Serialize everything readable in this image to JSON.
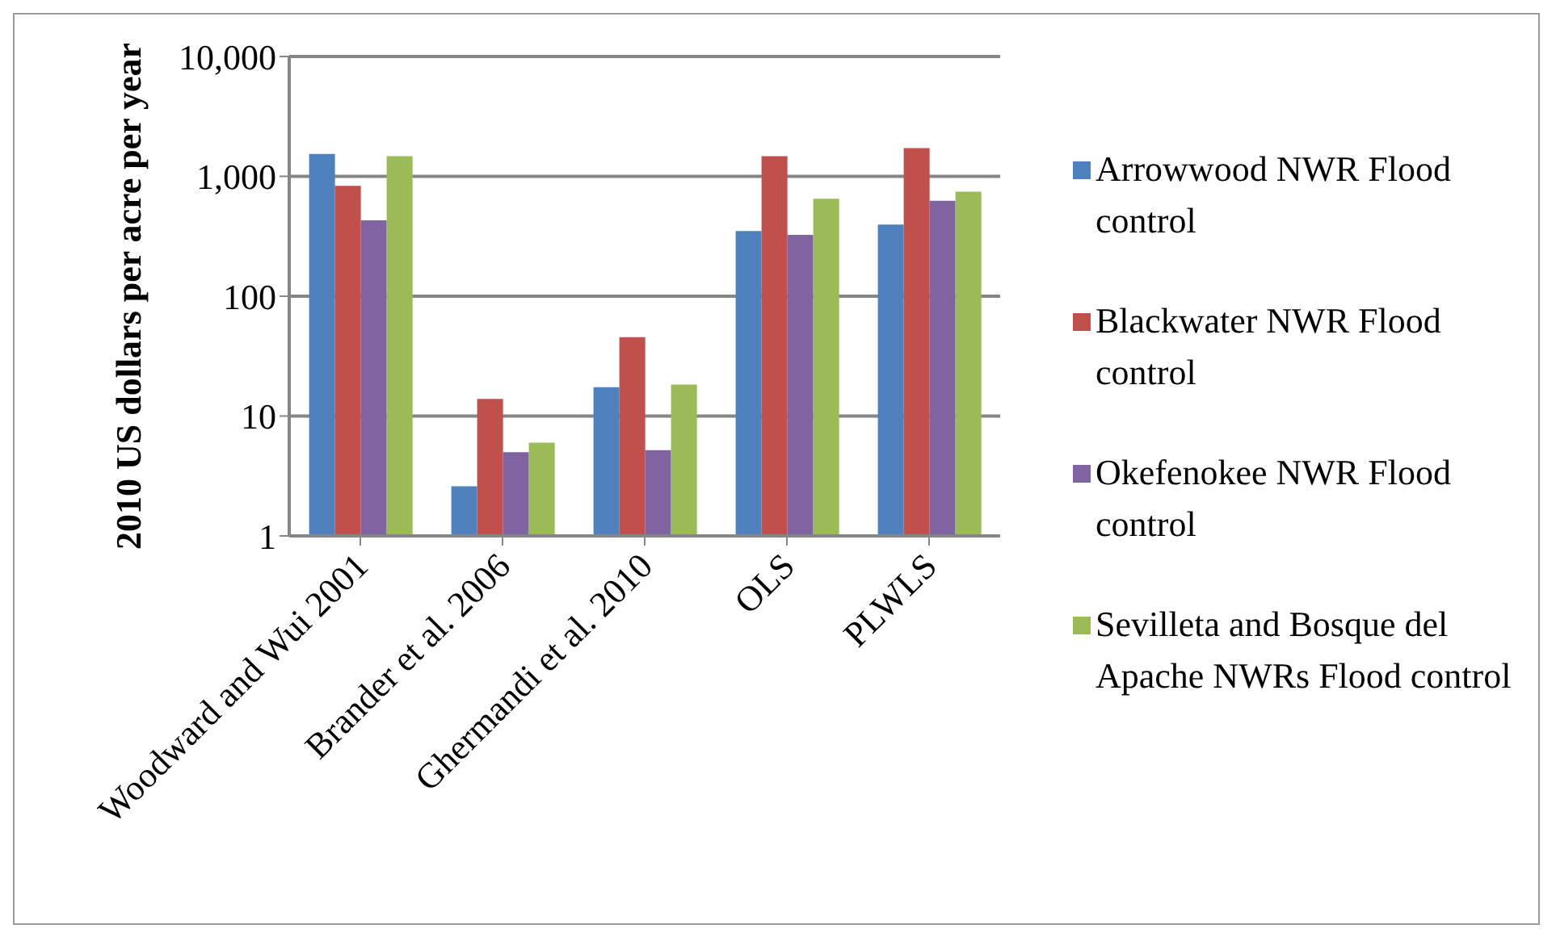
{
  "chart_data": {
    "type": "bar",
    "ylabel": "2010 US dollars per acre per year",
    "categories": [
      "Woodward and Wui 2001",
      "Brander et al. 2006",
      "Ghermandi et al. 2010",
      "OLS",
      "PLWLS"
    ],
    "series": [
      {
        "name": "Arrowwood NWR Flood control",
        "color": "#4f81bd",
        "values": [
          1540,
          2.6,
          17.4,
          350,
          396
        ]
      },
      {
        "name": "Blackwater NWR Flood control",
        "color": "#c0504d",
        "values": [
          834,
          13.9,
          45.5,
          1475,
          1722
        ]
      },
      {
        "name": "Okefenokee NWR Flood control",
        "color": "#8064a2",
        "values": [
          430,
          5.0,
          5.2,
          325,
          625
        ]
      },
      {
        "name": "Sevilleta and Bosque del Apache NWRs Flood control",
        "color": "#9bbb59",
        "values": [
          1475,
          6.0,
          18.3,
          651,
          745
        ]
      }
    ],
    "log": true,
    "ylim": [
      1,
      10000
    ],
    "yticks": [
      1,
      10,
      100,
      {
        "value": 1000,
        "label": "1,000"
      },
      {
        "value": 10000,
        "label": "10,000"
      }
    ],
    "grid": "y",
    "legend": "right"
  }
}
